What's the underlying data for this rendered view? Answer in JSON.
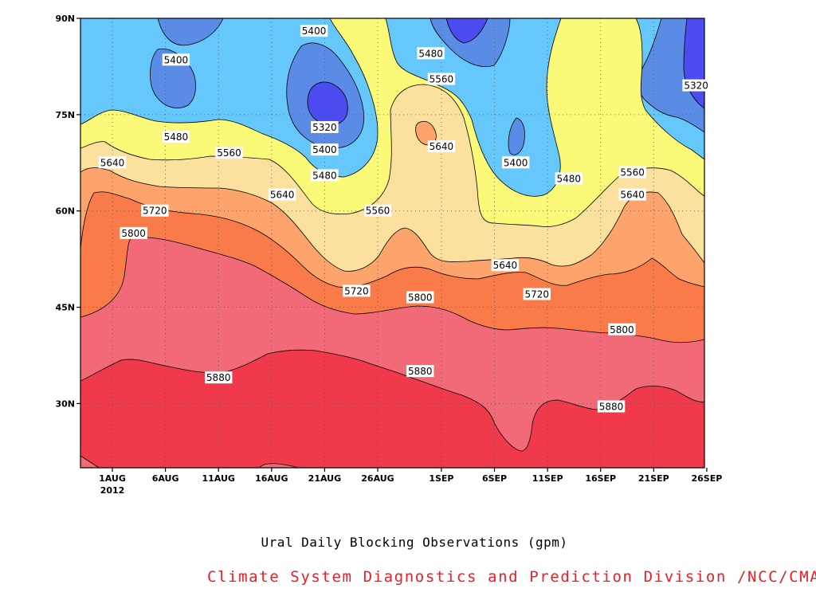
{
  "chart_data": {
    "type": "heatmap",
    "subtype": "filled contour (time-latitude Hovmoller)",
    "caption": "Ural Daily Blocking Observations (gpm)",
    "credit": "Climate System Diagnostics and Prediction Division /NCC/CMA",
    "x_ticks": [
      "1AUG",
      "6AUG",
      "11AUG",
      "16AUG",
      "21AUG",
      "26AUG",
      "1SEP",
      "6SEP",
      "11SEP",
      "16SEP",
      "21SEP",
      "26SEP"
    ],
    "x_year": "2012",
    "y_ticks": [
      "30N",
      "45N",
      "60N",
      "75N",
      "90N"
    ],
    "y_tick_values": [
      30,
      45,
      60,
      75,
      90
    ],
    "ylim": [
      20,
      90
    ],
    "contour_levels": [
      5320,
      5400,
      5480,
      5560,
      5640,
      5720,
      5800,
      5880
    ],
    "contour_labels": [
      {
        "text": "5400",
        "date": "7AUG",
        "lat": 83.5
      },
      {
        "text": "5400",
        "date": "20AUG",
        "lat": 88
      },
      {
        "text": "5480",
        "date": "31AUG",
        "lat": 84.5
      },
      {
        "text": "5560",
        "date": "1SEP",
        "lat": 80.5
      },
      {
        "text": "5320",
        "date": "21AUG",
        "lat": 73
      },
      {
        "text": "5480",
        "date": "7AUG",
        "lat": 71.5
      },
      {
        "text": "5560",
        "date": "12AUG",
        "lat": 69
      },
      {
        "text": "5400",
        "date": "21AUG",
        "lat": 69.5
      },
      {
        "text": "5640",
        "date": "1SEP",
        "lat": 70
      },
      {
        "text": "5400",
        "date": "8SEP",
        "lat": 67.5
      },
      {
        "text": "5320",
        "date": "25SEP",
        "lat": 79.5
      },
      {
        "text": "5640",
        "date": "1AUG",
        "lat": 67.5
      },
      {
        "text": "5480",
        "date": "21AUG",
        "lat": 65.5
      },
      {
        "text": "5480",
        "date": "13SEP",
        "lat": 65
      },
      {
        "text": "5560",
        "date": "19SEP",
        "lat": 66
      },
      {
        "text": "5640",
        "date": "17AUG",
        "lat": 62.5
      },
      {
        "text": "5560",
        "date": "26AUG",
        "lat": 60
      },
      {
        "text": "5640",
        "date": "19SEP",
        "lat": 62.5
      },
      {
        "text": "5720",
        "date": "5AUG",
        "lat": 60
      },
      {
        "text": "5800",
        "date": "3AUG",
        "lat": 56.5
      },
      {
        "text": "5640",
        "date": "7SEP",
        "lat": 51.5
      },
      {
        "text": "5720",
        "date": "24AUG",
        "lat": 47.5
      },
      {
        "text": "5800",
        "date": "30AUG",
        "lat": 46.5
      },
      {
        "text": "5720",
        "date": "10SEP",
        "lat": 47
      },
      {
        "text": "5800",
        "date": "18SEP",
        "lat": 41.5
      },
      {
        "text": "5880",
        "date": "11AUG",
        "lat": 34
      },
      {
        "text": "5880",
        "date": "30AUG",
        "lat": 35
      },
      {
        "text": "5880",
        "date": "17SEP",
        "lat": 29.5
      }
    ],
    "colors": {
      "lt5320": "#4b4cf0",
      "5320_5400": "#5a8ce6",
      "5400_5480": "#66c8fa",
      "5480_5560": "#fafa78",
      "5560_5640": "#fce09e",
      "5640_5720": "#fca46c",
      "5720_5800": "#fa7b4a",
      "5800_5880": "#f26a78",
      "gt5880": "#f03a4c"
    },
    "grid": "dotted"
  }
}
